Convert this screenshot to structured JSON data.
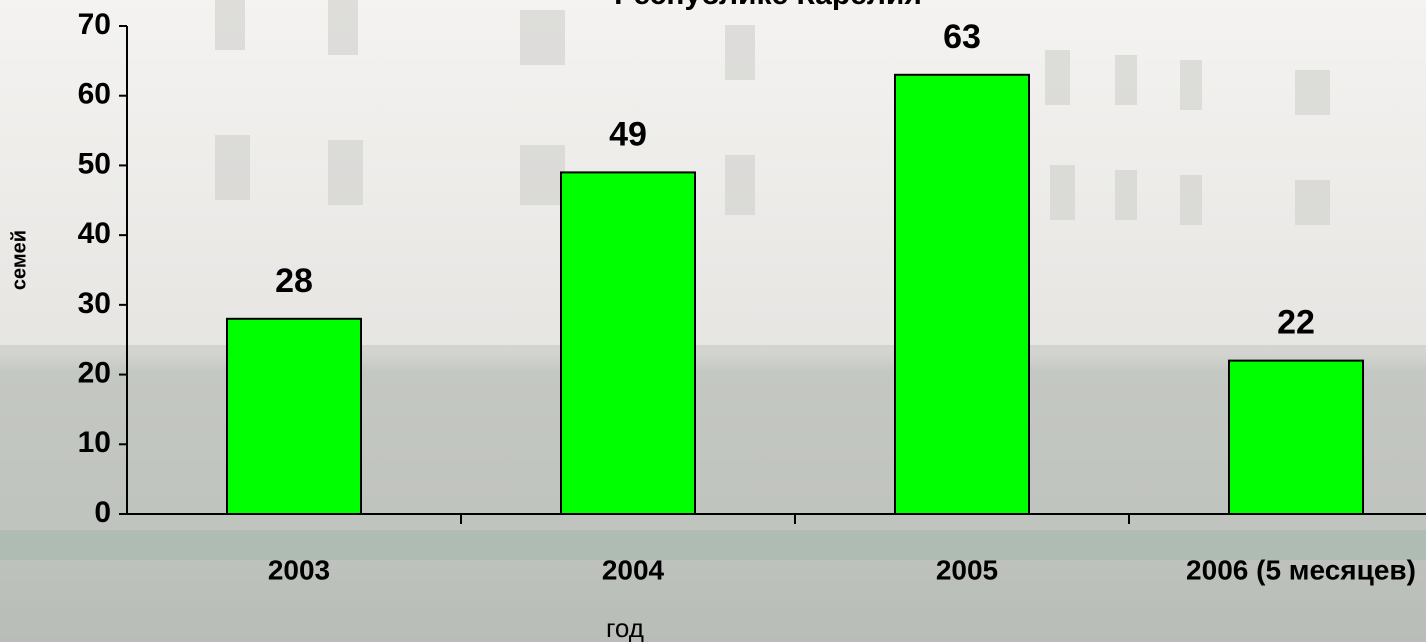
{
  "chart_data": {
    "type": "bar",
    "title": "Республике Карелия",
    "categories": [
      "2003",
      "2004",
      "2005",
      "2006 (5 месяцев)"
    ],
    "values": [
      28,
      49,
      63,
      22
    ],
    "color": "#00ff00",
    "x_label": "год",
    "y_label": "семей",
    "ylim": [
      0,
      70
    ],
    "yticks": [
      0,
      10,
      20,
      30,
      40,
      50,
      60,
      70
    ]
  }
}
